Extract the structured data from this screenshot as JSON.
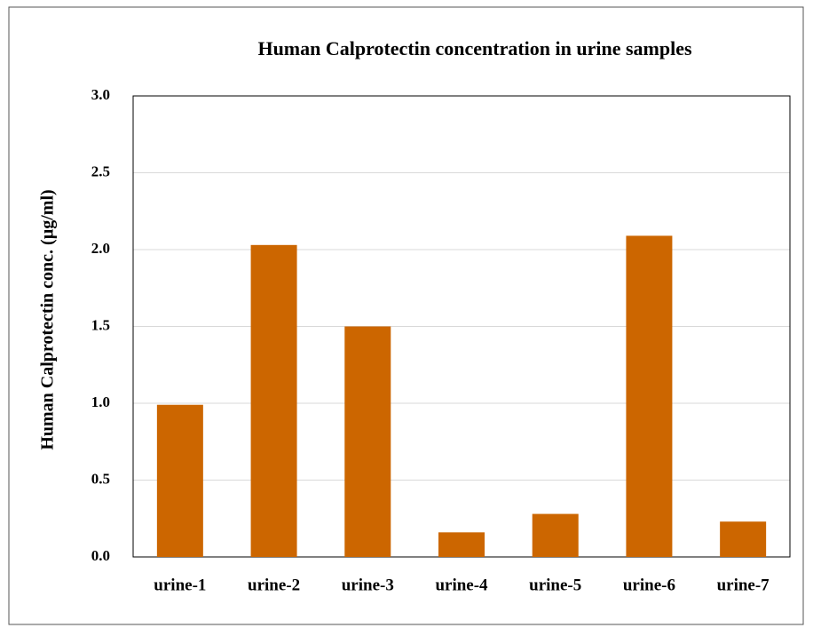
{
  "chart_data": {
    "type": "bar",
    "title": "Human  Calprotectin concentration in urine samples",
    "ylabel": "Human  Calprotectin  conc.  (µg/ml)",
    "categories": [
      "urine-1",
      "urine-2",
      "urine-3",
      "urine-4",
      "urine-5",
      "urine-6",
      "urine-7"
    ],
    "values": [
      0.99,
      2.03,
      1.5,
      0.16,
      0.28,
      2.09,
      0.23
    ],
    "color": "#cc6600",
    "ylim": [
      0,
      3
    ],
    "yticks": [
      {
        "value": 0,
        "label": "0.0"
      },
      0.5,
      {
        "value": 1,
        "label": "1.0"
      },
      1.5,
      {
        "value": 2,
        "label": "2.0"
      },
      2.5,
      {
        "value": 3,
        "label": "3.0"
      }
    ],
    "grid": true
  }
}
